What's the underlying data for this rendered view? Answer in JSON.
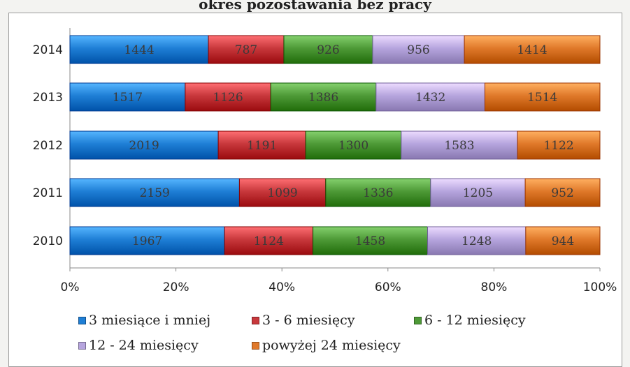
{
  "title": "okres pozostawania bez pracy",
  "chart_data": {
    "type": "bar",
    "orientation": "horizontal",
    "stacking": "percent",
    "categories": [
      "2014",
      "2013",
      "2012",
      "2011",
      "2010"
    ],
    "series": [
      {
        "name": "3 miesiące i mniej",
        "color": "#1f7fd6",
        "values": [
          1444,
          1517,
          2019,
          2159,
          1967
        ]
      },
      {
        "name": "3 - 6 miesięcy",
        "color": "#c8383c",
        "values": [
          787,
          1126,
          1191,
          1099,
          1124
        ]
      },
      {
        "name": "6 - 12 miesięcy",
        "color": "#4e9a37",
        "values": [
          926,
          1386,
          1300,
          1336,
          1458
        ]
      },
      {
        "name": "12 - 24 miesięcy",
        "color": "#b6a5de",
        "values": [
          956,
          1432,
          1583,
          1205,
          1248
        ]
      },
      {
        "name": "powyżej 24 miesięcy",
        "color": "#e0792a",
        "values": [
          1414,
          1514,
          1122,
          952,
          944
        ]
      }
    ],
    "x_ticks": [
      "0%",
      "20%",
      "40%",
      "60%",
      "80%",
      "100%"
    ],
    "xlim": [
      0,
      100
    ],
    "data_labels": true,
    "legend_position": "bottom",
    "xlabel": "",
    "ylabel": ""
  }
}
